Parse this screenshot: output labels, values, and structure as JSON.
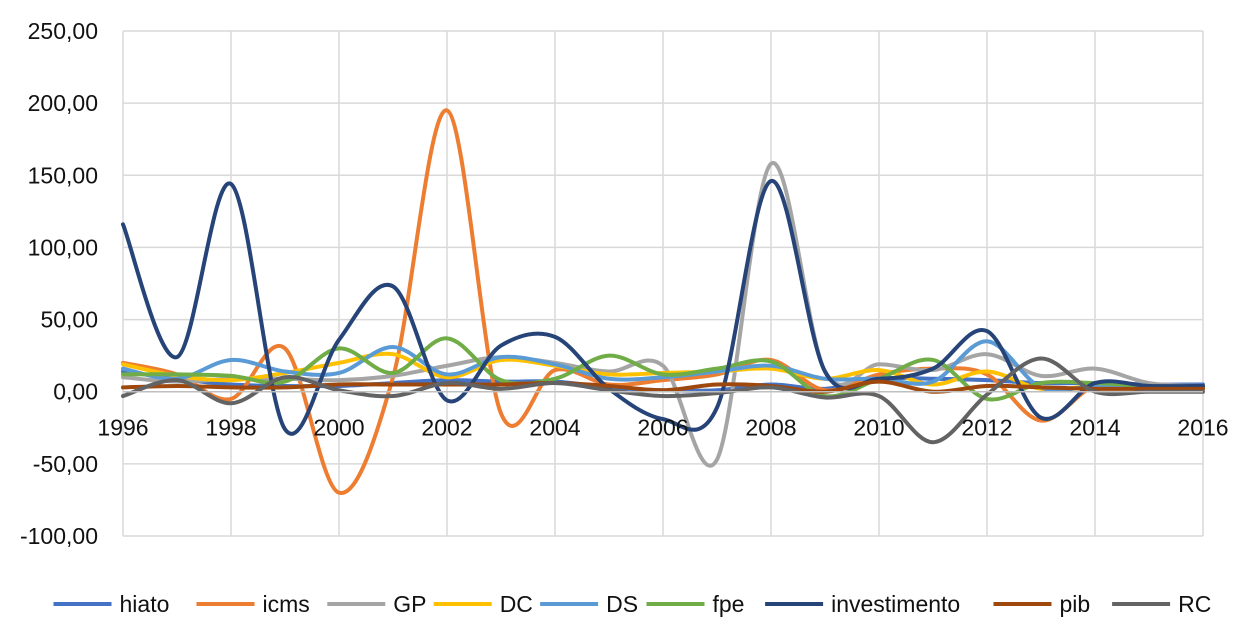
{
  "chart_data": {
    "type": "line",
    "smooth": true,
    "title": "",
    "xlabel": "",
    "ylabel": "",
    "ylim": [
      -100,
      250
    ],
    "y_ticks": [
      "250,00",
      "200,00",
      "150,00",
      "100,00",
      "50,00",
      "0,00",
      "-50,00",
      "-100,00"
    ],
    "x": [
      1996,
      1997,
      1998,
      1999,
      2000,
      2001,
      2002,
      2003,
      2004,
      2005,
      2006,
      2007,
      2008,
      2009,
      2010,
      2011,
      2012,
      2013,
      2014,
      2015,
      2016
    ],
    "x_tick_labels": [
      "1996",
      "1998",
      "2000",
      "2002",
      "2004",
      "2006",
      "2008",
      "2010",
      "2012",
      "2014",
      "2016"
    ],
    "legend_position": "bottom",
    "grid": true,
    "series": [
      {
        "name": "hiato",
        "color": "#4472c4",
        "values": [
          14,
          9,
          5,
          4,
          4,
          6,
          8,
          7,
          7,
          3,
          1,
          1,
          5,
          2,
          9,
          9,
          8,
          6,
          6,
          5,
          5
        ]
      },
      {
        "name": "icms",
        "color": "#ed7d31",
        "values": [
          20,
          12,
          -5,
          30,
          -70,
          10,
          195,
          -15,
          15,
          5,
          8,
          12,
          22,
          1,
          12,
          16,
          12,
          -20,
          4,
          3,
          4
        ]
      },
      {
        "name": "GP",
        "color": "#a5a5a5",
        "values": [
          10,
          7,
          9,
          9,
          8,
          11,
          18,
          24,
          20,
          14,
          18,
          -47,
          158,
          14,
          19,
          15,
          26,
          11,
          16,
          6,
          4
        ]
      },
      {
        "name": "DC",
        "color": "#ffc000",
        "values": [
          19,
          11,
          8,
          13,
          20,
          26,
          10,
          22,
          18,
          12,
          13,
          14,
          16,
          9,
          15,
          5,
          14,
          2,
          4,
          4,
          3
        ]
      },
      {
        "name": "DS",
        "color": "#5b9bd5",
        "values": [
          16,
          9,
          22,
          14,
          13,
          31,
          12,
          24,
          19,
          9,
          10,
          14,
          18,
          9,
          9,
          7,
          35,
          3,
          4,
          4,
          3
        ]
      },
      {
        "name": "fpe",
        "color": "#70ad47",
        "values": [
          12,
          12,
          11,
          7,
          30,
          13,
          37,
          8,
          9,
          25,
          12,
          16,
          21,
          -3,
          9,
          22,
          -5,
          6,
          6,
          4,
          3
        ]
      },
      {
        "name": "investimento",
        "color": "#264478",
        "values": [
          116,
          24,
          144,
          -26,
          36,
          73,
          -6,
          32,
          38,
          2,
          -19,
          -11,
          146,
          14,
          9,
          16,
          42,
          -18,
          6,
          4,
          4
        ]
      },
      {
        "name": "pib",
        "color": "#9e480e",
        "values": [
          3,
          4,
          3,
          3,
          5,
          5,
          5,
          5,
          6,
          4,
          1,
          5,
          4,
          0,
          7,
          0,
          4,
          3,
          2,
          2,
          2
        ]
      },
      {
        "name": "RC",
        "color": "#636363",
        "values": [
          -3,
          8,
          -8,
          10,
          1,
          -3,
          6,
          2,
          6,
          1,
          -3,
          -1,
          3,
          -4,
          -3,
          -35,
          -2,
          23,
          0,
          0,
          0
        ]
      }
    ]
  }
}
